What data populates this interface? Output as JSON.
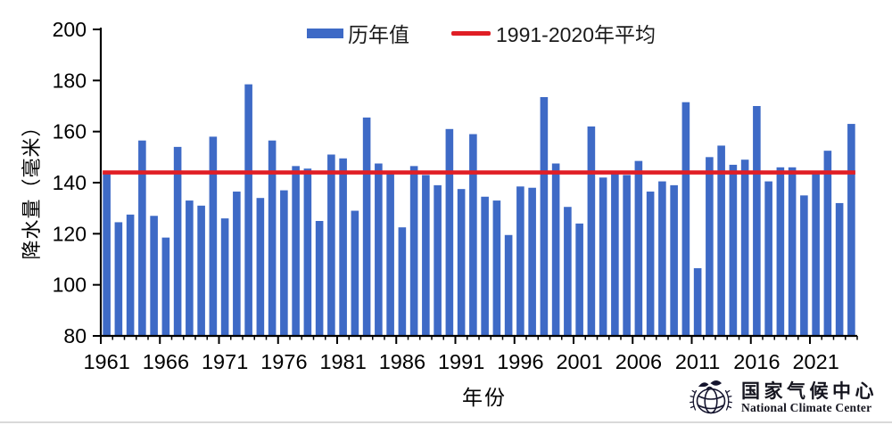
{
  "page": {
    "background": "#ffffff"
  },
  "legend": {
    "items": [
      {
        "label": "历年值",
        "swatch": "bar",
        "color": "#3e6ac6"
      },
      {
        "label": "1991-2020年平均",
        "swatch": "line",
        "color": "#e01e25"
      }
    ]
  },
  "chart_data": {
    "type": "bar",
    "title": "",
    "xlabel": "年份",
    "ylabel": "降水量（毫米）",
    "ylim": [
      80,
      200
    ],
    "y_ticks": [
      80,
      100,
      120,
      140,
      160,
      180,
      200
    ],
    "x_tick_labels": [
      1961,
      1966,
      1971,
      1976,
      1981,
      1986,
      1991,
      1996,
      2001,
      2006,
      2011,
      2016,
      2021
    ],
    "grid": false,
    "legend_position": "top",
    "categories": [
      1961,
      1962,
      1963,
      1964,
      1965,
      1966,
      1967,
      1968,
      1969,
      1970,
      1971,
      1972,
      1973,
      1974,
      1975,
      1976,
      1977,
      1978,
      1979,
      1980,
      1981,
      1982,
      1983,
      1984,
      1985,
      1986,
      1987,
      1988,
      1989,
      1990,
      1991,
      1992,
      1993,
      1994,
      1995,
      1996,
      1997,
      1998,
      1999,
      2000,
      2001,
      2002,
      2003,
      2004,
      2005,
      2006,
      2007,
      2008,
      2009,
      2010,
      2011,
      2012,
      2013,
      2014,
      2015,
      2016,
      2017,
      2018,
      2019,
      2020,
      2021,
      2022,
      2023,
      2024
    ],
    "series": [
      {
        "name": "历年值",
        "type": "bar",
        "color": "#3e6ac6",
        "values": [
          144,
          124.5,
          127.5,
          156.5,
          127,
          118.5,
          154,
          133,
          131,
          158,
          126,
          136.5,
          178.5,
          134,
          156.5,
          137,
          146.5,
          145.5,
          125,
          151,
          149.5,
          129,
          165.5,
          147.5,
          143.5,
          122.5,
          146.5,
          143,
          139,
          161,
          137.5,
          159,
          134.5,
          133,
          119.5,
          138.5,
          138,
          173.5,
          147.5,
          130.5,
          124,
          162,
          142,
          144.5,
          143,
          148.5,
          136.5,
          140.5,
          139,
          171.5,
          106.5,
          150,
          154.5,
          147,
          149,
          170,
          140.5,
          146,
          146,
          135,
          144.5,
          152.5,
          132,
          163
        ]
      },
      {
        "name": "1991-2020年平均",
        "type": "hline",
        "color": "#e01e25",
        "value": 144
      }
    ]
  },
  "footer": {
    "org_cn": "国家气候中心",
    "org_en": "National Climate Center"
  }
}
